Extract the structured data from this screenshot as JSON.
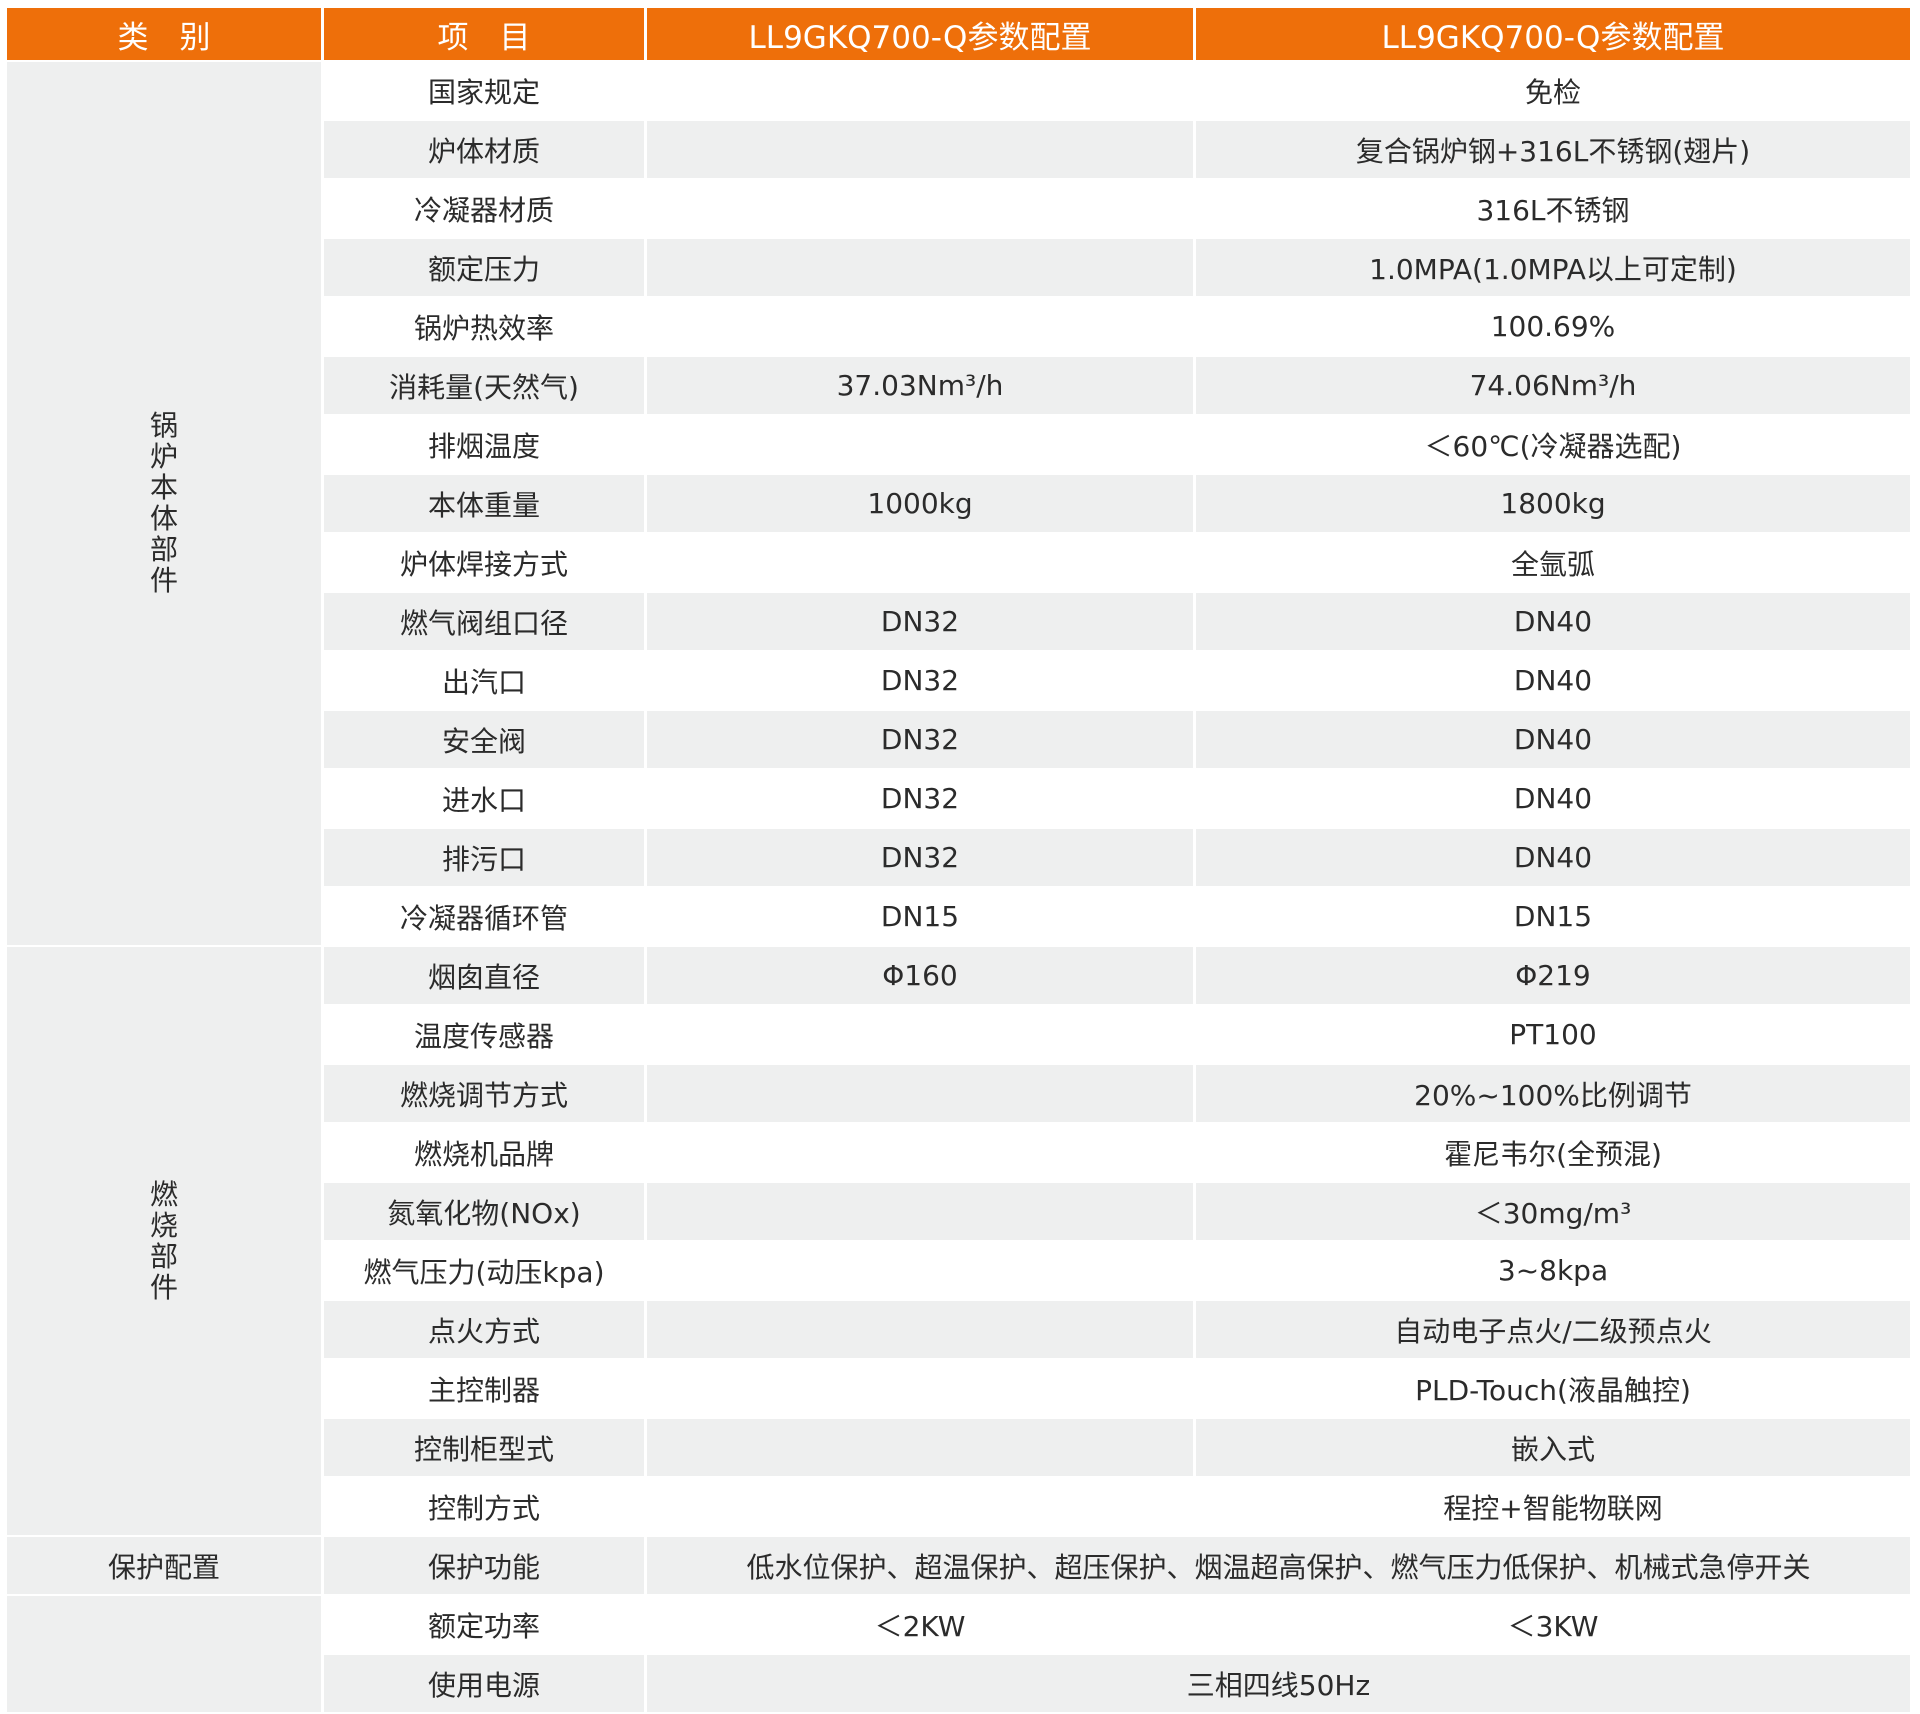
{
  "header": [
    "类　别",
    "项　目",
    "LL9GKQ700-Q参数配置",
    "LL9GKQ700-Q参数配置"
  ],
  "colors": {
    "header_bg": "#ee6f0a",
    "alt_row": "#eeefef",
    "text": "#2b2b2b"
  },
  "categories": [
    {
      "label": "锅炉本体部件",
      "vertical": true,
      "rows": 15
    },
    {
      "label": "燃烧部件",
      "vertical": true,
      "rows": 10
    },
    {
      "label": "保护配置",
      "vertical": false,
      "rows": 1
    },
    {
      "label": "",
      "vertical": false,
      "rows": 2
    }
  ],
  "rows": [
    {
      "item": "国家规定",
      "a": "",
      "b": "免检"
    },
    {
      "item": "炉体材质",
      "a": "",
      "b": "复合锅炉钢+316L不锈钢(翅片)"
    },
    {
      "item": "冷凝器材质",
      "a": "",
      "b": "316L不锈钢"
    },
    {
      "item": "额定压力",
      "a": "",
      "b": "1.0MPA(1.0MPA以上可定制)"
    },
    {
      "item": "锅炉热效率",
      "a": "",
      "b": "100.69%"
    },
    {
      "item": "消耗量(天然气)",
      "a": "37.03Nm³/h",
      "b": "74.06Nm³/h"
    },
    {
      "item": "排烟温度",
      "a": "",
      "b": "＜60℃(冷凝器选配)"
    },
    {
      "item": "本体重量",
      "a": "1000kg",
      "b": "1800kg"
    },
    {
      "item": "炉体焊接方式",
      "a": "",
      "b": "全氩弧"
    },
    {
      "item": "燃气阀组口径",
      "a": "DN32",
      "b": "DN40"
    },
    {
      "item": "出汽口",
      "a": "DN32",
      "b": "DN40"
    },
    {
      "item": "安全阀",
      "a": "DN32",
      "b": "DN40"
    },
    {
      "item": "进水口",
      "a": "DN32",
      "b": "DN40"
    },
    {
      "item": "排污口",
      "a": "DN32",
      "b": "DN40"
    },
    {
      "item": "冷凝器循环管",
      "a": "DN15",
      "b": "DN15"
    },
    {
      "item": "烟囱直径",
      "a": "Φ160",
      "b": "Φ219"
    },
    {
      "item": "温度传感器",
      "a": "",
      "b": "PT100"
    },
    {
      "item": "燃烧调节方式",
      "a": "",
      "b": "20%~100%比例调节"
    },
    {
      "item": "燃烧机品牌",
      "a": "",
      "b": "霍尼韦尔(全预混)"
    },
    {
      "item": "氮氧化物(NOx)",
      "a": "",
      "b": "＜30mg/m³"
    },
    {
      "item": "燃气压力(动压kpa)",
      "a": "",
      "b": "3~8kpa"
    },
    {
      "item": "点火方式",
      "a": "",
      "b": "自动电子点火/二级预点火"
    },
    {
      "item": "主控制器",
      "a": "",
      "b": "PLD-Touch(液晶触控)"
    },
    {
      "item": "控制柜型式",
      "a": "",
      "b": "嵌入式"
    },
    {
      "item": "控制方式",
      "a": "",
      "b": "程控+智能物联网"
    },
    {
      "item": "保护功能",
      "merged": "低水位保护、超温保护、超压保护、烟温超高保护、燃气压力低保护、机械式急停开关"
    },
    {
      "item": "额定功率",
      "a": "＜2KW",
      "b": "＜3KW"
    },
    {
      "item": "使用电源",
      "merged": "三相四线50Hz"
    }
  ]
}
